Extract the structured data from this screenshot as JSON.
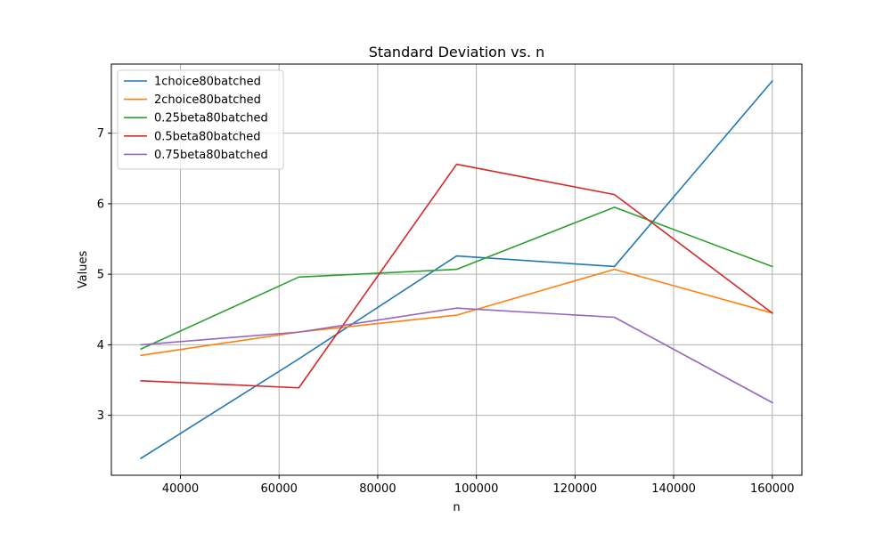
{
  "chart_data": {
    "type": "line",
    "title": "Standard Deviation vs. n",
    "xlabel": "n",
    "ylabel": "Values",
    "xlim": [
      26000,
      166000
    ],
    "ylim": [
      2.15,
      7.98
    ],
    "xticks": [
      40000,
      60000,
      80000,
      100000,
      120000,
      140000,
      160000
    ],
    "yticks": [
      3,
      4,
      5,
      6,
      7
    ],
    "grid": true,
    "legend_position": "top-left",
    "x": [
      32000,
      64000,
      96000,
      128000,
      160000
    ],
    "series": [
      {
        "name": "1choice80batched",
        "color": "#1f77b4",
        "values": [
          2.39,
          3.8,
          5.26,
          5.11,
          7.74
        ]
      },
      {
        "name": "2choice80batched",
        "color": "#ff7f0e",
        "values": [
          3.85,
          4.18,
          4.42,
          5.07,
          4.45
        ]
      },
      {
        "name": "0.25beta80batched",
        "color": "#2ca02c",
        "values": [
          3.94,
          4.96,
          5.07,
          5.95,
          5.11
        ]
      },
      {
        "name": "0.5beta80batched",
        "color": "#d62728",
        "values": [
          3.49,
          3.39,
          6.56,
          6.13,
          4.45
        ]
      },
      {
        "name": "0.75beta80batched",
        "color": "#9467bd",
        "values": [
          4.0,
          4.18,
          4.52,
          4.39,
          3.18
        ]
      }
    ]
  }
}
